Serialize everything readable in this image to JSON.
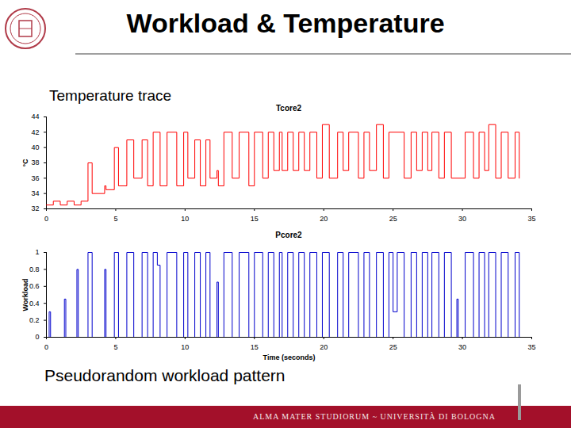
{
  "slide": {
    "title": "Workload & Temperature",
    "label": "Temperature trace",
    "caption": "Pseudorandom workload pattern",
    "footer": "ALMA MATER STUDIORUM ~ UNIVERSITÀ DI BOLOGNA"
  },
  "chart_data": [
    {
      "type": "line",
      "title": "Tcore2",
      "ylabel": "°C",
      "color": "#ff0000",
      "grid": false,
      "line_style": "solid",
      "xlim": [
        0,
        35
      ],
      "xticks": [
        0,
        5,
        10,
        15,
        20,
        25,
        30,
        35
      ],
      "ylim": [
        32,
        44
      ],
      "yticks": [
        32,
        34,
        36,
        38,
        40,
        42,
        44
      ],
      "x": [
        0,
        0.5,
        1.0,
        1.5,
        2.0,
        2.5,
        3.0,
        3.3,
        4.2,
        4.3,
        4.9,
        5.2,
        5.8,
        6.3,
        6.9,
        7.3,
        7.7,
        8.2,
        8.7,
        9.4,
        9.9,
        10.2,
        10.7,
        11.1,
        11.5,
        11.8,
        12.3,
        12.4,
        12.8,
        13.4,
        13.9,
        14.6,
        15.0,
        15.6,
        16.0,
        16.4,
        16.8,
        17.0,
        17.4,
        17.8,
        18.2,
        18.6,
        19.0,
        19.5,
        19.9,
        20.4,
        21.0,
        21.4,
        21.8,
        22.5,
        22.9,
        23.3,
        23.8,
        24.3,
        24.7,
        25.8,
        26.3,
        26.7,
        27.1,
        27.5,
        27.8,
        28.3,
        28.7,
        29.2,
        30.2,
        30.8,
        31.2,
        31.6,
        31.9,
        32.4,
        32.8,
        33.3,
        33.8,
        34.1
      ],
      "values": [
        32.5,
        33,
        32.5,
        33,
        32.5,
        33,
        38,
        34,
        35,
        34.5,
        40,
        35,
        41,
        36,
        41,
        35,
        42,
        35,
        42,
        35,
        42,
        36,
        41,
        35,
        41,
        36,
        37,
        35,
        42,
        36,
        42,
        35,
        42,
        36,
        42,
        37,
        42,
        37,
        42,
        37,
        42,
        37,
        42,
        36,
        43,
        36,
        42,
        37,
        42,
        36,
        42,
        37,
        43,
        36,
        42,
        36,
        42,
        37,
        42,
        37,
        42,
        36,
        42,
        36,
        42,
        36,
        42,
        37,
        43,
        36,
        42,
        36,
        42,
        36
      ]
    },
    {
      "type": "line",
      "title": "Pcore2",
      "xlabel": "Time (seconds)",
      "ylabel": "Workload",
      "color": "#0000cc",
      "grid": false,
      "line_style": "solid",
      "xlim": [
        0,
        35
      ],
      "xticks": [
        0,
        5,
        10,
        15,
        20,
        25,
        30,
        35
      ],
      "ylim": [
        0,
        1
      ],
      "yticks": [
        0,
        0.2,
        0.4,
        0.6,
        0.8,
        1
      ],
      "x": [
        0,
        0.2,
        0.3,
        1.3,
        1.4,
        2.2,
        2.3,
        3.0,
        3.3,
        4.2,
        4.3,
        4.9,
        5.2,
        5.8,
        6.3,
        6.9,
        7.3,
        7.7,
        8.0,
        8.2,
        8.7,
        9.4,
        9.9,
        10.2,
        10.7,
        11.1,
        11.5,
        11.8,
        12.3,
        12.4,
        12.8,
        13.4,
        13.9,
        14.6,
        15.0,
        15.6,
        16.0,
        16.4,
        16.8,
        17.0,
        17.4,
        17.8,
        18.2,
        18.6,
        19.0,
        19.5,
        19.9,
        20.4,
        21.0,
        21.4,
        21.8,
        22.5,
        22.9,
        23.3,
        23.8,
        24.3,
        24.7,
        25.0,
        25.3,
        25.8,
        26.3,
        26.7,
        27.1,
        27.5,
        27.8,
        28.3,
        28.7,
        29.2,
        29.6,
        29.7,
        30.2,
        30.8,
        31.2,
        31.6,
        31.9,
        32.4,
        32.8,
        33.3,
        33.8,
        34.1
      ],
      "values": [
        0,
        0.3,
        0,
        0.45,
        0,
        0.8,
        0,
        1,
        0,
        0.8,
        0,
        1,
        0,
        1,
        0,
        1,
        0,
        1,
        0.85,
        0,
        1,
        0,
        1,
        0,
        1,
        0,
        1,
        0,
        0.65,
        0,
        1,
        0,
        1,
        0,
        1,
        0,
        1,
        0,
        1,
        0,
        1,
        0,
        1,
        0,
        1,
        0,
        1,
        0,
        1,
        0,
        1,
        0,
        1,
        0,
        1,
        0,
        1,
        0.3,
        1,
        0,
        1,
        0,
        1,
        0,
        1,
        0,
        1,
        0,
        0.45,
        0,
        1,
        0,
        1,
        0,
        1,
        0,
        1,
        0,
        1,
        0
      ]
    }
  ]
}
